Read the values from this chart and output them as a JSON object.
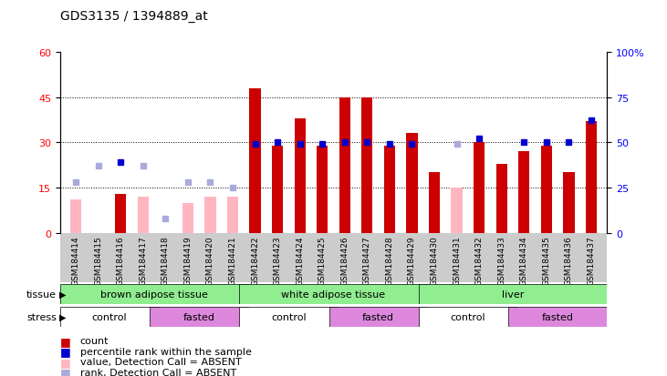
{
  "title": "GDS3135 / 1394889_at",
  "samples": [
    "GSM184414",
    "GSM184415",
    "GSM184416",
    "GSM184417",
    "GSM184418",
    "GSM184419",
    "GSM184420",
    "GSM184421",
    "GSM184422",
    "GSM184423",
    "GSM184424",
    "GSM184425",
    "GSM184426",
    "GSM184427",
    "GSM184428",
    "GSM184429",
    "GSM184430",
    "GSM184431",
    "GSM184432",
    "GSM184433",
    "GSM184434",
    "GSM184435",
    "GSM184436",
    "GSM184437"
  ],
  "count_present": [
    null,
    null,
    13,
    null,
    null,
    null,
    null,
    null,
    48,
    29,
    38,
    29,
    45,
    45,
    29,
    33,
    20,
    null,
    30,
    23,
    27,
    29,
    20,
    37
  ],
  "count_absent": [
    11,
    null,
    null,
    12,
    null,
    10,
    12,
    12,
    null,
    null,
    null,
    null,
    null,
    null,
    null,
    null,
    null,
    15,
    null,
    null,
    null,
    null,
    null,
    null
  ],
  "rank_present": [
    null,
    null,
    39,
    null,
    null,
    null,
    null,
    null,
    49,
    50,
    49,
    49,
    50,
    50,
    49,
    49,
    null,
    null,
    52,
    null,
    50,
    50,
    50,
    62
  ],
  "rank_absent": [
    28,
    37,
    null,
    37,
    8,
    28,
    28,
    25,
    null,
    null,
    null,
    null,
    null,
    null,
    null,
    null,
    null,
    49,
    null,
    null,
    null,
    null,
    null,
    null
  ],
  "ylim_left": [
    0,
    60
  ],
  "ylim_right": [
    0,
    100
  ],
  "yticks_left": [
    0,
    15,
    30,
    45,
    60
  ],
  "yticks_right": [
    0,
    25,
    50,
    75,
    100
  ],
  "bar_color_present": "#CC0000",
  "bar_color_absent": "#FFB6C1",
  "rank_color_present": "#0000CC",
  "rank_color_absent": "#AAAADD",
  "plot_bg": "#FFFFFF",
  "fig_bg": "#FFFFFF",
  "tissue_color": "#90EE90",
  "stress_control_color": "#FFFFFF",
  "stress_fasted_color": "#DD88DD",
  "tissue_labels": [
    "brown adipose tissue",
    "white adipose tissue",
    "liver"
  ],
  "tissue_starts": [
    0,
    8,
    16
  ],
  "tissue_ends": [
    8,
    16,
    24
  ],
  "stress_labels": [
    "control",
    "fasted",
    "control",
    "fasted",
    "control",
    "fasted"
  ],
  "stress_starts": [
    0,
    4,
    8,
    12,
    16,
    20
  ],
  "stress_ends": [
    4,
    8,
    12,
    16,
    20,
    24
  ],
  "bar_width": 0.5
}
